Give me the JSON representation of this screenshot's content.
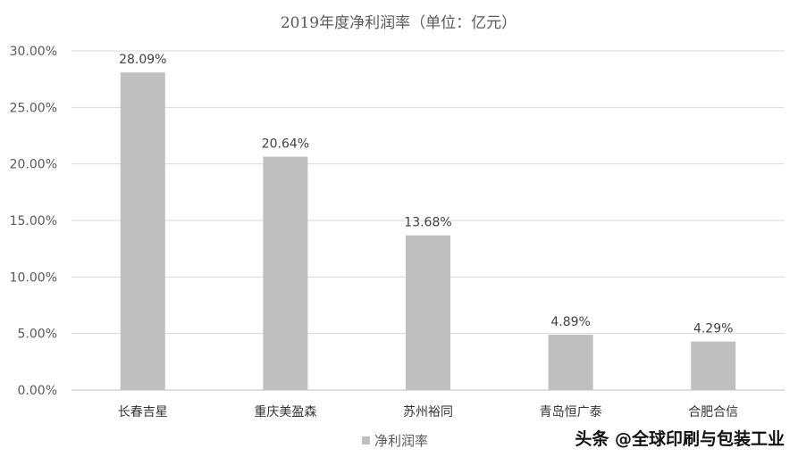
{
  "chart_data": {
    "type": "bar",
    "title": "2019年度净利润率（单位：亿元）",
    "categories": [
      "长春吉星",
      "重庆美盈森",
      "苏州裕同",
      "青岛恒广泰",
      "合肥合信"
    ],
    "series": [
      {
        "name": "净利润率",
        "values": [
          28.09,
          20.64,
          13.68,
          4.89,
          4.29
        ],
        "data_labels": [
          "28.09%",
          "20.64%",
          "13.68%",
          "4.89%",
          "4.29%"
        ],
        "color": "#bfbfbf"
      }
    ],
    "y_ticks": [
      0,
      5,
      10,
      15,
      20,
      25,
      30
    ],
    "y_tick_labels": [
      "0.00%",
      "5.00%",
      "10.00%",
      "15.00%",
      "20.00%",
      "25.00%",
      "30.00%"
    ],
    "ylim": [
      0,
      30
    ],
    "grid": true,
    "legend": "bottom",
    "xlabel": "",
    "ylabel": ""
  },
  "watermark": "头条 @全球印刷与包装工业",
  "colors": {
    "bar": "#bfbfbf",
    "grid": "#d9d9d9",
    "axis": "#bfbfbf"
  }
}
